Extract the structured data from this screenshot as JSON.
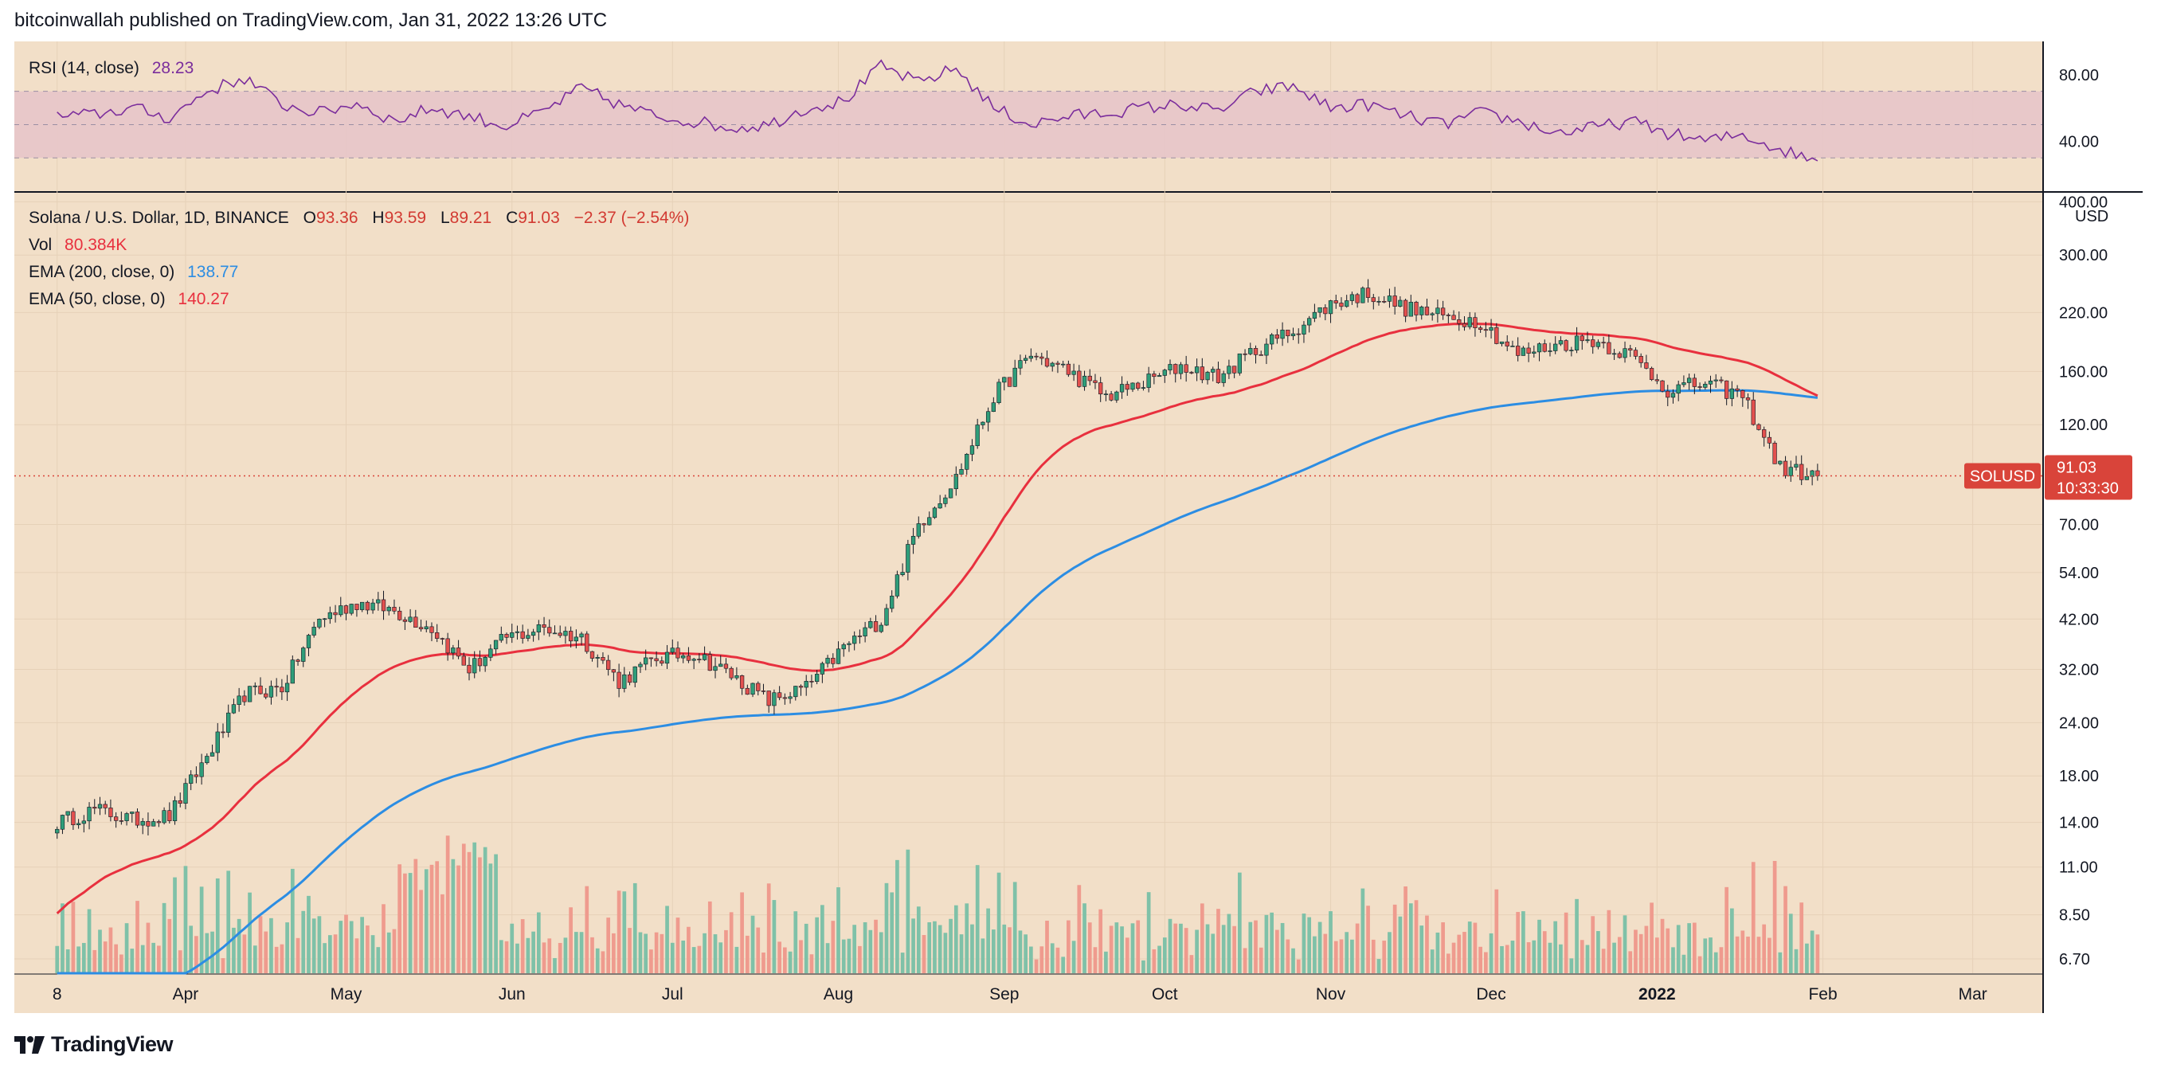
{
  "header": {
    "published": "bitcoinwallah published on TradingView.com, Jan 31, 2022 13:26 UTC"
  },
  "brand": {
    "name": "TradingView"
  },
  "colors": {
    "background": "#f2dfc8",
    "ema50": "#e8303e",
    "ema200": "#2c8de3",
    "rsi_line": "#7b2d9c",
    "rsi_band": "#e7c5c9",
    "up": "#2f9e7a",
    "down": "#e3504e",
    "volume_up": "#7fc1a8",
    "volume_down": "#ef9b8e",
    "price_label": "#d9443a"
  },
  "rsi_legend": {
    "label": "RSI (14, close)",
    "value": "28.23"
  },
  "main_legend": {
    "symbol": "Solana / U.S. Dollar, 1D, BINANCE",
    "o_label": "O",
    "o": "93.36",
    "h_label": "H",
    "h": "93.59",
    "l_label": "L",
    "l": "89.21",
    "c_label": "C",
    "c": "91.03",
    "change": "−2.37 (−2.54%)",
    "vol_label": "Vol",
    "vol": "80.384K",
    "ema200_label": "EMA (200, close, 0)",
    "ema200": "138.77",
    "ema50_label": "EMA (50, close, 0)",
    "ema50": "140.27"
  },
  "price_tag": {
    "symbol": "SOLUSD",
    "price": "91.03",
    "countdown": "10:33:30"
  },
  "chart_data": {
    "type": "candlestick",
    "title": "Solana / U.S. Dollar, 1D, BINANCE",
    "scale": "log",
    "currency": "USD",
    "y_ticks": [
      "400.00",
      "300.00",
      "220.00",
      "160.00",
      "120.00",
      "91.03",
      "70.00",
      "54.00",
      "42.00",
      "32.00",
      "24.00",
      "18.00",
      "14.00",
      "11.00",
      "8.50",
      "6.70"
    ],
    "y_tick_values": [
      400,
      300,
      220,
      160,
      120,
      70,
      54,
      42,
      32,
      24,
      18,
      14,
      11,
      8.5,
      6.7
    ],
    "x_labels": [
      "8",
      "Apr",
      "May",
      "Jun",
      "Jul",
      "Aug",
      "Sep",
      "Oct",
      "Nov",
      "Dec",
      "2022",
      "Feb",
      "Mar"
    ],
    "x_label_dates": [
      "2021-03-08",
      "2021-04-01",
      "2021-05-01",
      "2021-06-01",
      "2021-07-01",
      "2021-08-01",
      "2021-09-01",
      "2021-10-01",
      "2021-11-01",
      "2021-12-01",
      "2022-01-01",
      "2022-02-01",
      "2022-03-01"
    ],
    "ylim": [
      6.2,
      420
    ],
    "price_series": {
      "name": "SOLUSD",
      "dates": [
        "2021-03-08",
        "2021-03-15",
        "2021-03-22",
        "2021-03-29",
        "2021-04-05",
        "2021-04-12",
        "2021-04-19",
        "2021-04-26",
        "2021-05-03",
        "2021-05-10",
        "2021-05-17",
        "2021-05-24",
        "2021-05-31",
        "2021-06-07",
        "2021-06-14",
        "2021-06-21",
        "2021-06-28",
        "2021-07-05",
        "2021-07-12",
        "2021-07-19",
        "2021-07-26",
        "2021-08-02",
        "2021-08-09",
        "2021-08-16",
        "2021-08-23",
        "2021-08-30",
        "2021-09-06",
        "2021-09-13",
        "2021-09-20",
        "2021-09-27",
        "2021-10-04",
        "2021-10-11",
        "2021-10-18",
        "2021-10-25",
        "2021-11-01",
        "2021-11-08",
        "2021-11-15",
        "2021-11-22",
        "2021-11-29",
        "2021-12-06",
        "2021-12-13",
        "2021-12-20",
        "2021-12-27",
        "2022-01-03",
        "2022-01-10",
        "2022-01-17",
        "2022-01-24",
        "2022-01-31"
      ],
      "close": [
        14.0,
        15.0,
        14.2,
        14.5,
        20.0,
        28.0,
        29.0,
        42.0,
        46.0,
        44.0,
        40.0,
        32.0,
        38.0,
        40.0,
        38.0,
        30.0,
        34.0,
        35.0,
        31.0,
        27.0,
        29.0,
        36.0,
        42.0,
        70.0,
        90.0,
        140.0,
        175.0,
        160.0,
        140.0,
        150.0,
        165.0,
        155.0,
        180.0,
        200.0,
        230.0,
        245.0,
        225.0,
        215.0,
        210.0,
        175.0,
        185.0,
        190.0,
        175.0,
        145.0,
        150.0,
        140.0,
        95.0,
        91.03
      ]
    },
    "ema50": {
      "name": "EMA (50, close, 0)",
      "last": 140.27
    },
    "ema200": {
      "name": "EMA (200, close, 0)",
      "last": 138.77
    },
    "volume": {
      "name": "Vol",
      "last": "80.384K"
    },
    "rsi": {
      "name": "RSI (14, close)",
      "last": 28.23,
      "ticks": [
        "80.00",
        "40.00"
      ],
      "tick_values": [
        80,
        40
      ],
      "band": [
        30,
        70
      ],
      "values": [
        55,
        56,
        60,
        54,
        70,
        78,
        62,
        57,
        63,
        52,
        60,
        55,
        49,
        58,
        72,
        62,
        55,
        52,
        48,
        50,
        60,
        64,
        85,
        75,
        84,
        60,
        50,
        55,
        57,
        60,
        62,
        58,
        70,
        73,
        60,
        62,
        55,
        50,
        57,
        52,
        45,
        48,
        52,
        45,
        40,
        44,
        35,
        28.23
      ]
    }
  }
}
